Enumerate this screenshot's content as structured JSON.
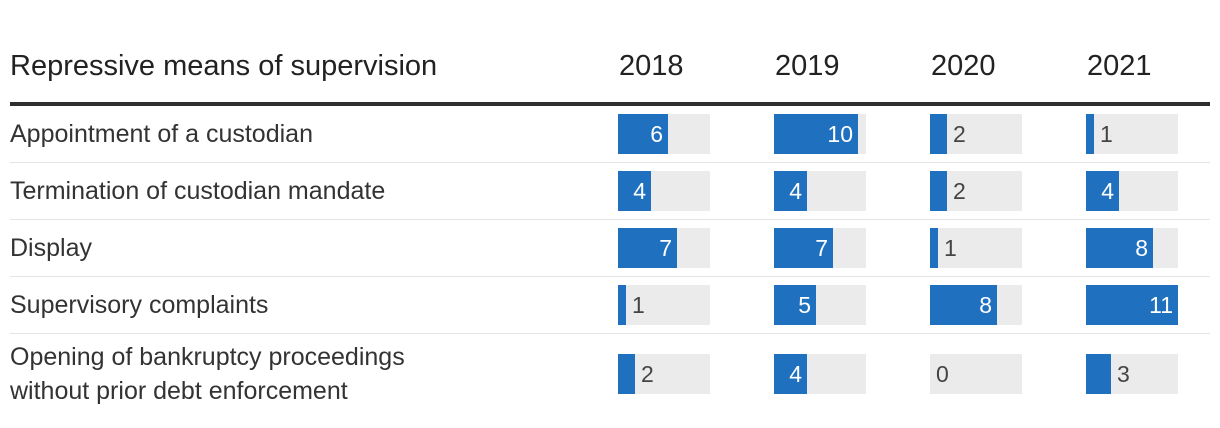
{
  "chart_data": {
    "type": "table",
    "header": "Repressive means of supervision",
    "columns": [
      "2018",
      "2019",
      "2020",
      "2021"
    ],
    "max_value": 11,
    "bar_color": "#2070c0",
    "track_color": "#ebebeb",
    "rows": [
      {
        "label": "Appointment of a custodian",
        "values": [
          6,
          10,
          2,
          1
        ]
      },
      {
        "label": "Termination of custodian mandate",
        "values": [
          4,
          4,
          2,
          4
        ]
      },
      {
        "label": "Display",
        "values": [
          7,
          7,
          1,
          8
        ]
      },
      {
        "label": "Supervisory complaints",
        "values": [
          1,
          5,
          8,
          11
        ]
      },
      {
        "label": "Opening of bankruptcy proceedings\nwithout prior debt enforcement",
        "values": [
          2,
          4,
          0,
          3
        ]
      }
    ]
  }
}
